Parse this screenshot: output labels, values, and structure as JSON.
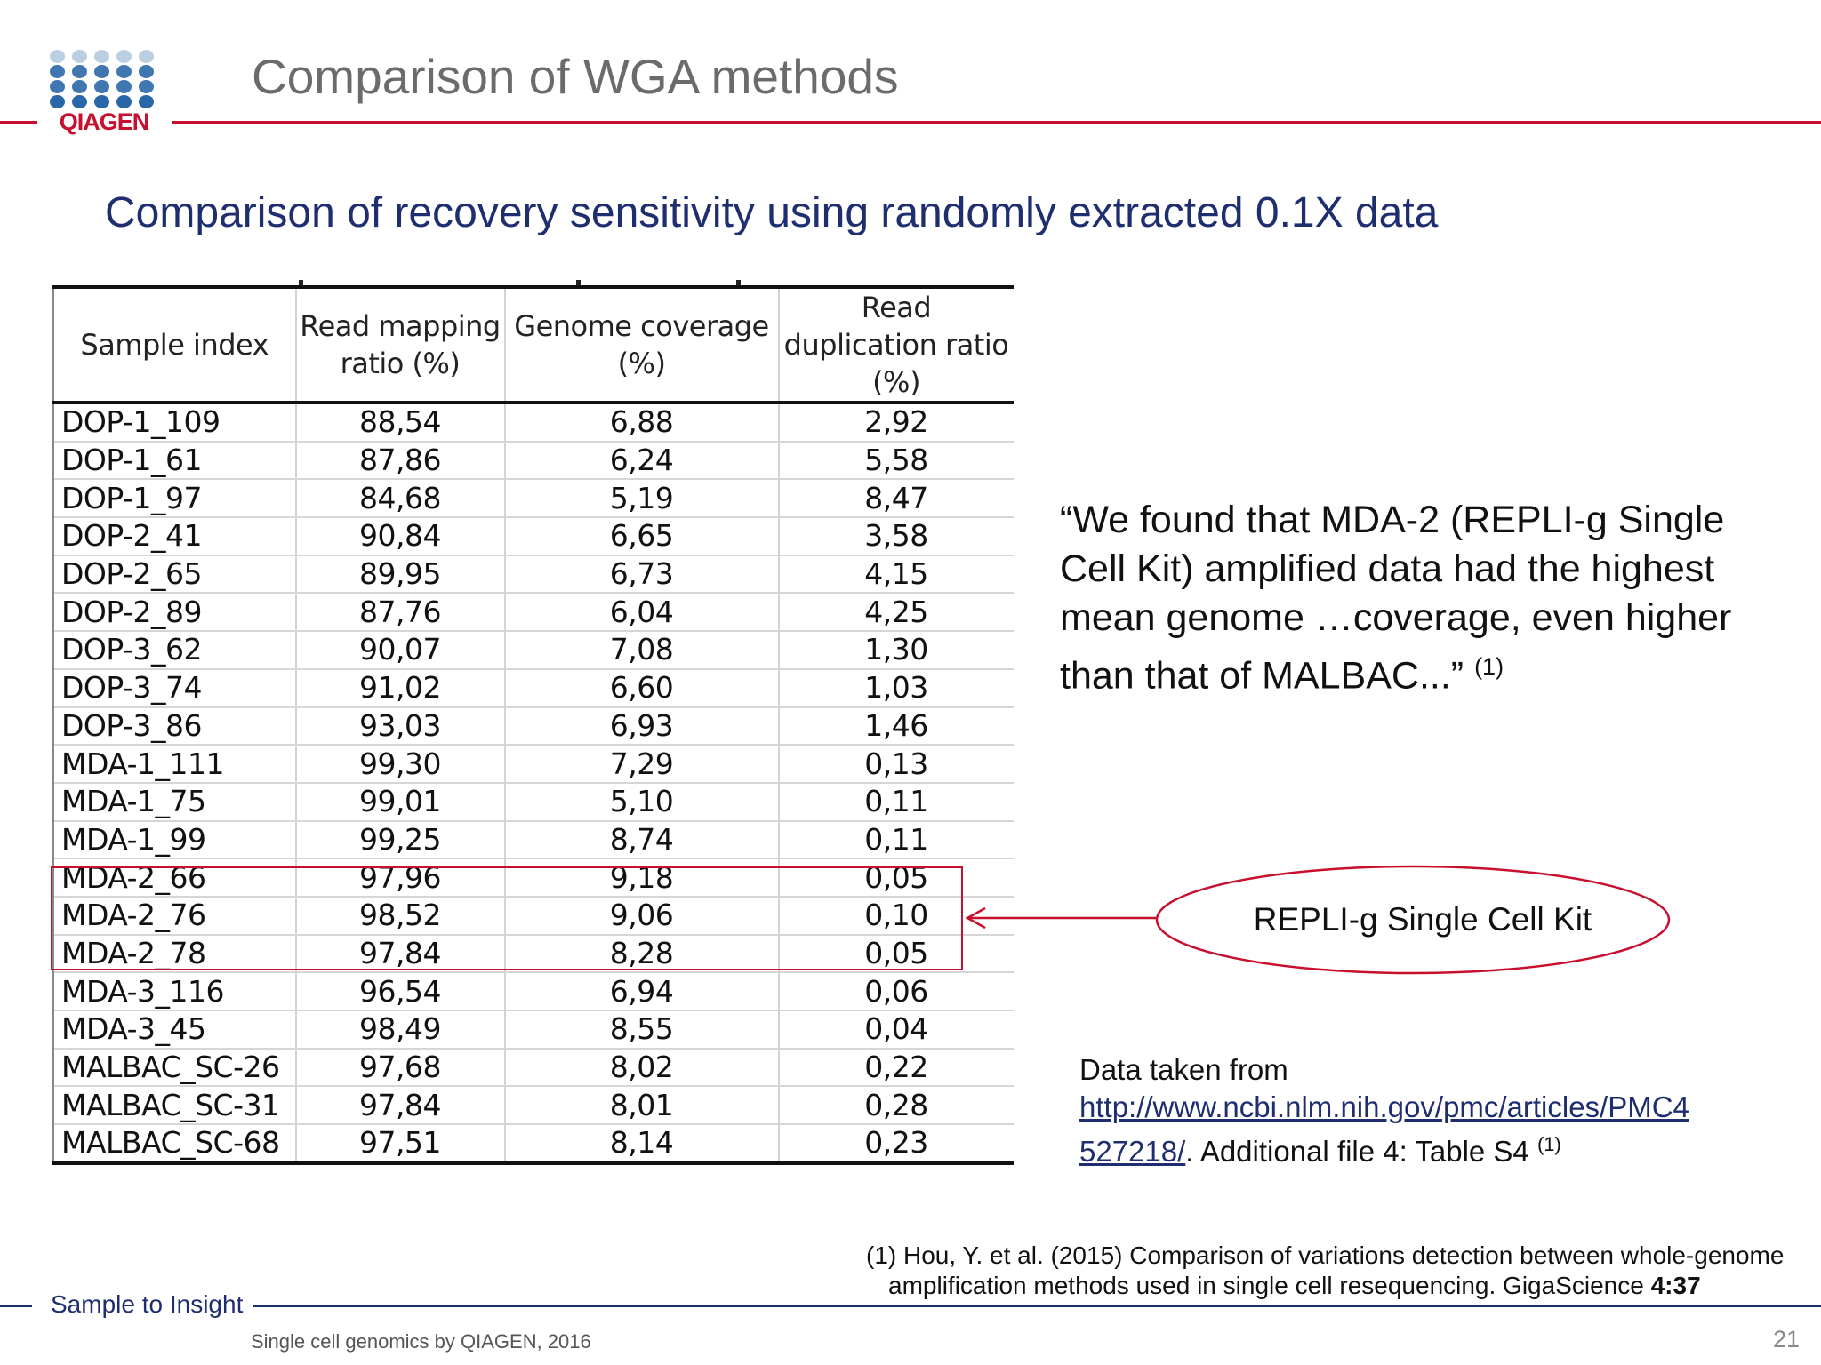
{
  "header": {
    "logo_text": "QIAGEN",
    "title": "Comparison of WGA methods"
  },
  "subtitle": "Comparison of recovery sensitivity using randomly extracted 0.1X data",
  "table": {
    "columns": [
      "Sample index",
      "Read mapping ratio (%)",
      "Genome coverage (%)",
      "Read duplication ratio (%)"
    ],
    "rows": [
      [
        "DOP-1_109",
        "88,54",
        "6,88",
        "2,92"
      ],
      [
        "DOP-1_61",
        "87,86",
        "6,24",
        "5,58"
      ],
      [
        "DOP-1_97",
        "84,68",
        "5,19",
        "8,47"
      ],
      [
        "DOP-2_41",
        "90,84",
        "6,65",
        "3,58"
      ],
      [
        "DOP-2_65",
        "89,95",
        "6,73",
        "4,15"
      ],
      [
        "DOP-2_89",
        "87,76",
        "6,04",
        "4,25"
      ],
      [
        "DOP-3_62",
        "90,07",
        "7,08",
        "1,30"
      ],
      [
        "DOP-3_74",
        "91,02",
        "6,60",
        "1,03"
      ],
      [
        "DOP-3_86",
        "93,03",
        "6,93",
        "1,46"
      ],
      [
        "MDA-1_111",
        "99,30",
        "7,29",
        "0,13"
      ],
      [
        "MDA-1_75",
        "99,01",
        "5,10",
        "0,11"
      ],
      [
        "MDA-1_99",
        "99,25",
        "8,74",
        "0,11"
      ],
      [
        "MDA-2_66",
        "97,96",
        "9,18",
        "0,05"
      ],
      [
        "MDA-2_76",
        "98,52",
        "9,06",
        "0,10"
      ],
      [
        "MDA-2_78",
        "97,84",
        "8,28",
        "0,05"
      ],
      [
        "MDA-3_116",
        "96,54",
        "6,94",
        "0,06"
      ],
      [
        "MDA-3_45",
        "98,49",
        "8,55",
        "0,04"
      ],
      [
        "MALBAC_SC-26",
        "97,68",
        "8,02",
        "0,22"
      ],
      [
        "MALBAC_SC-31",
        "97,84",
        "8,01",
        "0,28"
      ],
      [
        "MALBAC_SC-68",
        "97,51",
        "8,14",
        "0,23"
      ]
    ]
  },
  "quote": {
    "text": "“We found that MDA-2 (REPLI-g Single Cell Kit) amplified data had the highest mean genome …coverage, even higher than that of MALBAC...”",
    "ref": "(1)"
  },
  "callout": {
    "label": "REPLI-g Single Cell Kit"
  },
  "source": {
    "prefix": "Data taken from",
    "link": "http://www.ncbi.nlm.nih.gov/pmc/articles/PMC4527218/",
    "link_part1": "http://www.ncbi.nlm.nih.gov/pmc/articles/PMC4",
    "link_part2": "527218/",
    "suffix": ". Additional file 4: Table S4",
    "ref": "(1)"
  },
  "reference": {
    "line1": "(1) Hou, Y. et al. (2015) Comparison of variations detection between whole-genome",
    "line2": "amplification methods used in single cell resequencing. GigaScience",
    "volume": "4:37"
  },
  "footer": {
    "tagline": "Sample to Insight",
    "left": "Single cell genomics by QIAGEN, 2016",
    "page_number": "21"
  },
  "colors": {
    "brand_red": "#c8102e",
    "brand_navy": "#1e2e6e",
    "logo_blue": "#1f5fa3"
  }
}
